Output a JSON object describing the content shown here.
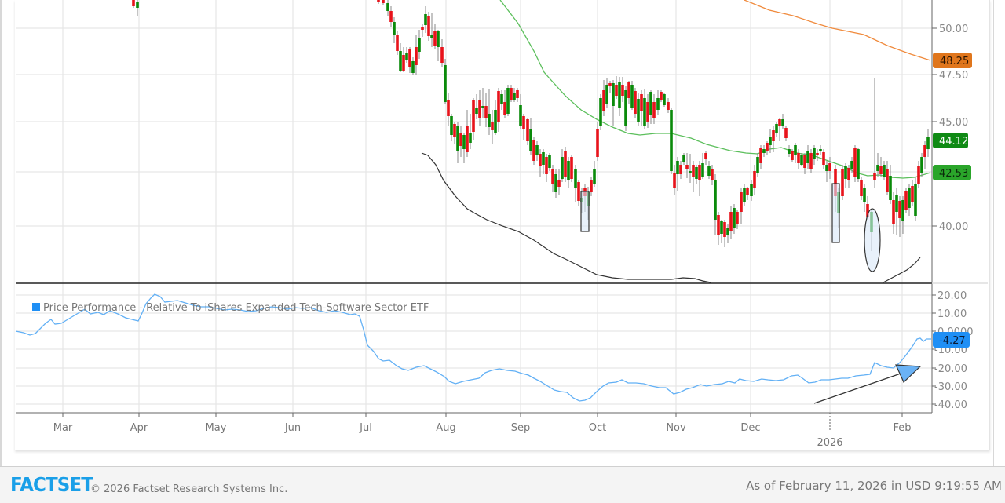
{
  "chart_data": [
    {
      "type": "candlestick",
      "title": "",
      "xlabel": "",
      "ylabel": "",
      "ylim": [
        37.2,
        51.5
      ],
      "grid": true,
      "yticks": [
        "40.00",
        "45.00",
        "47.50",
        "50.00"
      ],
      "xticks": [
        "Mar",
        "Apr",
        "May",
        "Jun",
        "Jul",
        "Aug",
        "Sep",
        "Oct",
        "Nov",
        "Dec",
        "2026",
        "Feb"
      ],
      "last_price_label": "44.12",
      "series": [
        {
          "name": "Price (OHLC candles)",
          "last_value": 44.12,
          "color_up": "#0a8a0a",
          "color_down": "#e8131b"
        },
        {
          "name": "Moving average (short)",
          "last_value": 42.53,
          "color": "#5cbf5c"
        },
        {
          "name": "Moving average (long)",
          "last_value": 48.25,
          "color": "#f08a3c"
        },
        {
          "name": "Lower band / indicator",
          "color": "#333333"
        }
      ],
      "approx_closes_by_month": {
        "Jul": 48.5,
        "Aug": 43.5,
        "Sep": 46.0,
        "Oct": 46.0,
        "Nov": 41.0,
        "Dec": 44.5,
        "Jan": 42.0,
        "Feb": 44.12
      },
      "annotations": [
        "rectangle highlight late Sep",
        "rectangle highlight early Jan",
        "ellipse highlight mid Jan"
      ]
    },
    {
      "type": "line",
      "title": "Price Performance - Relative To iShares Expanded Tech-Software Sector ETF",
      "ylim": [
        -43,
        23
      ],
      "yticks": [
        "20.00",
        "10.00",
        "0.0000",
        "-10.00",
        "-20.00",
        "-30.00",
        "-40.00"
      ],
      "grid": true,
      "legend_position": "top-left",
      "series": [
        {
          "name": "Price Performance - Relative To iShares Expanded Tech-Software Sector ETF",
          "color": "#62b0f5",
          "last_value": -4.27,
          "x": [
            "Feb-mid",
            "Mar",
            "Mar-mid",
            "Apr",
            "Apr-mid",
            "May",
            "May-mid",
            "Jun",
            "Jun-mid",
            "Jul",
            "Jul-mid",
            "Aug",
            "Aug-mid",
            "Sep",
            "Sep-mid",
            "Sep-end",
            "Oct",
            "Oct-mid",
            "Nov",
            "Nov-mid",
            "Dec",
            "Dec-mid",
            "Jan",
            "Jan-mid",
            "Jan-end",
            "Feb",
            "Feb-10"
          ],
          "values": [
            1,
            -2,
            5,
            4,
            16,
            10,
            12,
            10,
            12,
            10,
            -15,
            -22,
            -20,
            -22,
            -25,
            -39,
            -30,
            -31,
            -35,
            -31,
            -26,
            -26,
            -24,
            -20,
            -20,
            -9,
            -4.27
          ]
        }
      ],
      "annotations": [
        "arrow pointing to late-January upturn"
      ]
    }
  ],
  "price_panel": {
    "y_axis_labels": [
      "50.00",
      "47.50",
      "45.00",
      "40.00"
    ],
    "badges": {
      "long_ma": "48.25",
      "last_price": "44.12",
      "short_ma": "42.53"
    }
  },
  "perf_panel": {
    "legend_label": "Price Performance - Relative To iShares Expanded Tech-Software Sector ETF",
    "y_axis_labels": [
      "20.00",
      "10.00",
      "0.0000",
      "-10.00",
      "-20.00",
      "-30.00",
      "-40.00"
    ],
    "badge": "-4.27"
  },
  "x_axis": {
    "labels": [
      "Mar",
      "Apr",
      "May",
      "Jun",
      "Jul",
      "Aug",
      "Sep",
      "Oct",
      "Nov",
      "Dec",
      "Feb"
    ],
    "year_label": "2026"
  },
  "footer": {
    "logo": "FACTSET",
    "copyright": "© 2026 Factset Research Systems Inc.",
    "as_of": "As of February 11, 2026 in USD 9:19:55 AM"
  },
  "colors": {
    "up": "#0a8a0a",
    "down": "#e8131b",
    "short_ma": "#5cbf5c",
    "long_ma": "#f08a3c",
    "perf_line": "#62b0f5",
    "badge_orange": "#e0761c",
    "badge_green_dark": "#0f8a14",
    "badge_green": "#2aa52a",
    "badge_blue": "#1f8ff5"
  }
}
